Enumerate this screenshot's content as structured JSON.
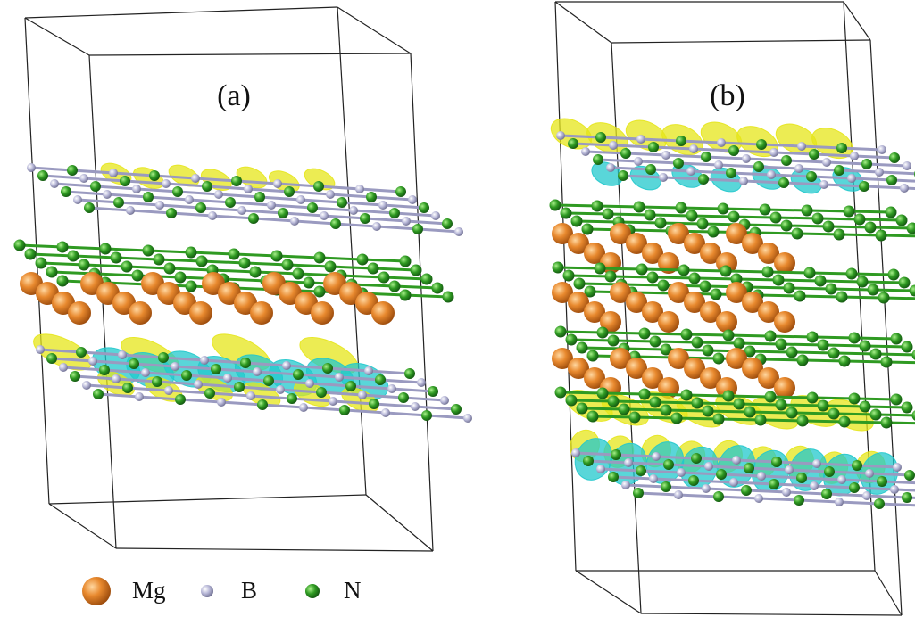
{
  "panels": [
    {
      "label": "(a)"
    },
    {
      "label": "(b)"
    }
  ],
  "legend": [
    {
      "label": "Mg"
    },
    {
      "label": "B"
    },
    {
      "label": "N"
    }
  ]
}
